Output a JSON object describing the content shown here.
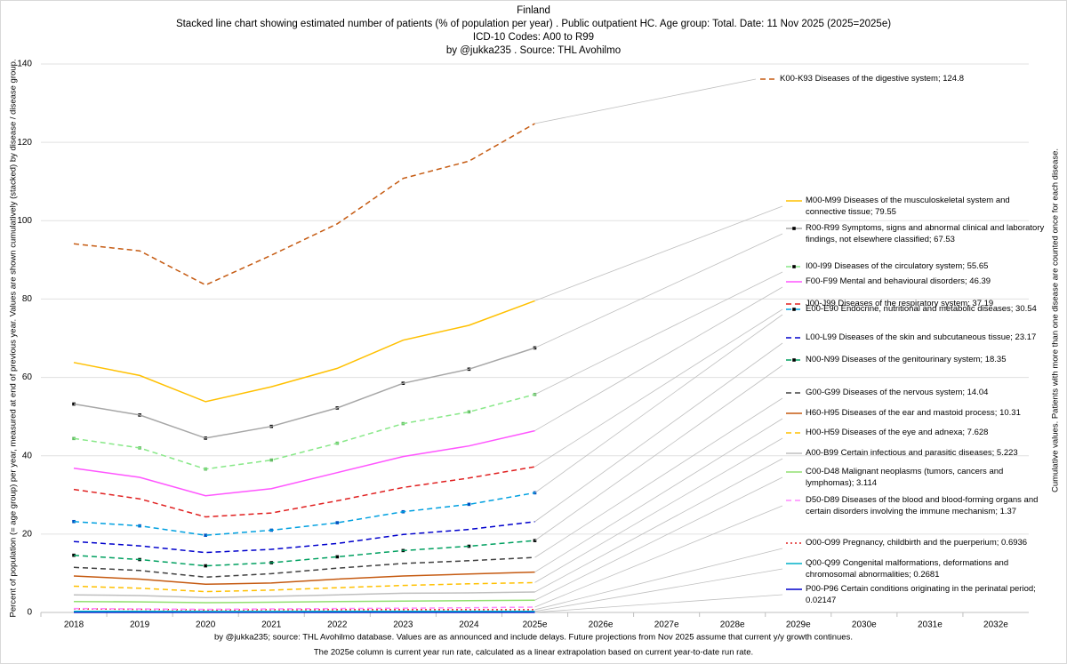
{
  "chart_data": {
    "type": "line",
    "stacked": true,
    "title": [
      "Finland",
      "Stacked line chart showing estimated number of patients  (% of population per year) . Public outpatient HC. Age group: Total. Date: 11 Nov 2025 (2025=2025e)",
      "ICD-10 Codes: A00 to R99",
      "by @jukka235 . Source: THL Avohilmo"
    ],
    "y_label": "Percent of population (= age group) per year, measured at end of previous year. Values are shown cumulatively (stacked) by disease / disease group.",
    "y2_label": "Cumulative values. Patients with more than one disease are counted once for each disease.",
    "footnotes": [
      "by @jukka235; source: THL Avohilmo database. Values are as announced and include delays. Future projections from Nov 2025 assume that current y/y growth continues.",
      "The 2025e column is current year run rate, calculated as a linear extrapolation based on current year-to-date run rate."
    ],
    "categories": [
      "2018",
      "2019",
      "2020",
      "2021",
      "2022",
      "2023",
      "2024",
      "2025e",
      "2026e",
      "2027e",
      "2028e",
      "2029e",
      "2030e",
      "2031e",
      "2032e"
    ],
    "ylim": [
      0,
      140
    ],
    "yticks": [
      0,
      20,
      40,
      60,
      80,
      100,
      120,
      140
    ],
    "grid": true,
    "series": [
      {
        "name": "P00-P96 Certain conditions originating in the perinatal period; 0.02147",
        "color": "#0000cc",
        "dash": "solid",
        "values": [
          0.02,
          0.02,
          0.02,
          0.02,
          0.02,
          0.02,
          0.02,
          0.02147,
          null,
          null,
          null,
          null,
          null,
          null,
          null
        ]
      },
      {
        "name": "Q00-Q99 Congenital malformations, deformations and chromosomal abnormalities; 0.2681",
        "color": "#00b0c8",
        "dash": "solid",
        "values": [
          0.28,
          0.28,
          0.23,
          0.23,
          0.25,
          0.25,
          0.25,
          0.24663,
          null,
          null,
          null,
          null,
          null,
          null,
          null
        ]
      },
      {
        "name": "O00-O99 Pregnancy, childbirth and the puerperium; 0.6936",
        "color": "#e02020",
        "dash": "dotted",
        "values": [
          0.6,
          0.5,
          0.4,
          0.45,
          0.43,
          0.43,
          0.43,
          0.4255,
          null,
          null,
          null,
          null,
          null,
          null,
          null
        ]
      },
      {
        "name": "D50-D89 Diseases of the blood and blood-forming organs and certain disorders involving the immune mechanism; 1.37",
        "color": "#ff88ff",
        "dash": "dashed",
        "values": [
          0.1,
          0.1,
          0.15,
          0.2,
          0.3,
          0.4,
          0.5,
          0.6764,
          null,
          null,
          null,
          null,
          null,
          null,
          null
        ]
      },
      {
        "name": "C00-D48 Malignant neoplasms (tumors, cancers and lymphomas); 3.114",
        "color": "#92e070",
        "dash": "solid",
        "values": [
          1.8,
          1.8,
          1.7,
          1.7,
          1.8,
          1.8,
          1.8,
          1.744,
          null,
          null,
          null,
          null,
          null,
          null,
          null
        ]
      },
      {
        "name": "A00-B99 Certain infectious and parasitic diseases; 5.223",
        "color": "#bfbfbf",
        "dash": "solid",
        "values": [
          1.7,
          1.6,
          1.3,
          1.5,
          1.7,
          2.0,
          2.0,
          2.109,
          null,
          null,
          null,
          null,
          null,
          null,
          null
        ]
      },
      {
        "name": "H00-H59 Diseases of the eye and adnexa; 7.628",
        "color": "#ffc000",
        "dash": "dashed",
        "values": [
          2.2,
          1.9,
          1.5,
          1.6,
          1.8,
          2.0,
          2.3,
          2.405,
          null,
          null,
          null,
          null,
          null,
          null,
          null
        ]
      },
      {
        "name": "H60-H95 Diseases of the ear and mastoid process; 10.31",
        "color": "#c55a11",
        "dash": "solid",
        "values": [
          2.6,
          2.3,
          1.9,
          1.8,
          2.2,
          2.4,
          2.5,
          2.682,
          null,
          null,
          null,
          null,
          null,
          null,
          null
        ]
      },
      {
        "name": "G00-G99 Diseases of the nervous system; 14.04",
        "color": "#404040",
        "dash": "dashed",
        "values": [
          2.2,
          2.2,
          1.8,
          2.4,
          2.8,
          3.2,
          3.4,
          3.73,
          null,
          null,
          null,
          null,
          null,
          null,
          null
        ]
      },
      {
        "name": "N00-N99 Diseases of the genitourinary system; 18.35",
        "color": "#00a060",
        "dash": "dashed",
        "marker": true,
        "values": [
          3.1,
          2.8,
          2.9,
          2.8,
          2.9,
          3.3,
          3.7,
          4.31,
          null,
          null,
          null,
          null,
          null,
          null,
          null
        ]
      },
      {
        "name": "L00-L99 Diseases of the skin and subcutaneous tissue; 23.17",
        "color": "#0000cc",
        "dash": "dashed",
        "values": [
          3.5,
          3.5,
          3.4,
          3.4,
          3.4,
          4.1,
          4.3,
          4.82,
          null,
          null,
          null,
          null,
          null,
          null,
          null
        ]
      },
      {
        "name": "E00-E90 Endocrine, nutritional and metabolic diseases; 30.54",
        "color": "#00a0e0",
        "dash": "dashed",
        "marker": true,
        "values": [
          5.1,
          5.1,
          4.4,
          4.9,
          5.3,
          5.8,
          6.4,
          7.37,
          null,
          null,
          null,
          null,
          null,
          null,
          null
        ]
      },
      {
        "name": "J00-J99 Diseases of the respiratory system; 37.19",
        "color": "#e02020",
        "dash": "dashed",
        "values": [
          8.2,
          6.9,
          4.7,
          4.4,
          5.6,
          6.2,
          6.7,
          6.65,
          null,
          null,
          null,
          null,
          null,
          null,
          null
        ]
      },
      {
        "name": "F00-F99 Mental and behavioural disorders; 46.39",
        "color": "#ff55ff",
        "dash": "solid",
        "values": [
          5.4,
          5.5,
          5.4,
          6.2,
          7.2,
          7.9,
          8.2,
          9.2,
          null,
          null,
          null,
          null,
          null,
          null,
          null
        ]
      },
      {
        "name": "I00-I99 Diseases of the circulatory system; 55.65",
        "color": "#88e888",
        "dash": "dashed",
        "marker": true,
        "values": [
          7.6,
          7.5,
          6.8,
          7.3,
          7.5,
          8.4,
          8.7,
          9.26,
          null,
          null,
          null,
          null,
          null,
          null,
          null
        ]
      },
      {
        "name": "R00-R99 Symptoms, signs and abnormal clinical and laboratory findings, not elsewhere classified; 67.53",
        "color": "#a6a6a6",
        "dash": "solid",
        "marker": true,
        "values": [
          8.8,
          8.4,
          7.9,
          8.6,
          9.0,
          10.3,
          10.9,
          11.88,
          null,
          null,
          null,
          null,
          null,
          null,
          null
        ]
      },
      {
        "name": "M00-M99 Diseases of the musculoskeletal system and connective tissue; 79.55",
        "color": "#ffc000",
        "dash": "solid",
        "values": [
          10.6,
          10.1,
          9.3,
          10.1,
          10.1,
          11.0,
          11.2,
          12.02,
          null,
          null,
          null,
          null,
          null,
          null,
          null
        ]
      },
      {
        "name": "K00-K93 Diseases of the digestive system; 124.8",
        "color": "#c55a11",
        "dash": "dashed",
        "values": [
          30.3,
          31.8,
          29.8,
          33.6,
          36.9,
          41.3,
          41.9,
          45.25,
          null,
          null,
          null,
          null,
          null,
          null,
          null
        ]
      }
    ]
  }
}
